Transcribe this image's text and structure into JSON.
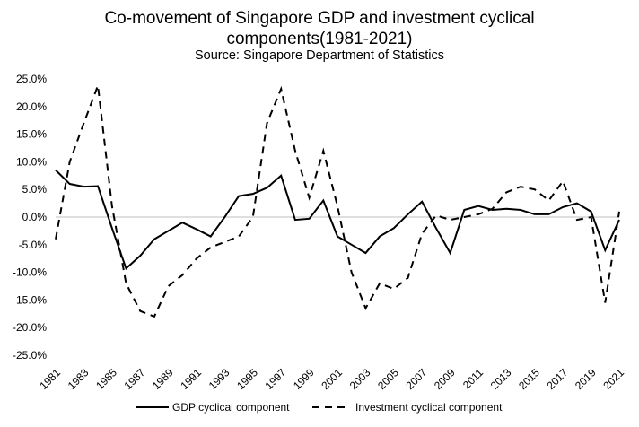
{
  "chart_data": {
    "type": "line",
    "title": "Co-movement of Singapore GDP and investment cyclical",
    "title_line2": "components(1981-2021)",
    "subtitle": "Source: Singapore Department of Statistics",
    "xlabel": "",
    "ylabel": "",
    "ylim": [
      -25,
      25
    ],
    "y_ticks": [
      25,
      20,
      15,
      10,
      5,
      0,
      -5,
      -10,
      -15,
      -20,
      -25
    ],
    "y_tick_labels": [
      "25.0%",
      "20.0%",
      "15.0%",
      "10.0%",
      "5.0%",
      "0.0%",
      "-5.0%",
      "-10.0%",
      "-15.0%",
      "-20.0%",
      "-25.0%"
    ],
    "x": [
      1981,
      1982,
      1983,
      1984,
      1985,
      1986,
      1987,
      1988,
      1989,
      1990,
      1991,
      1992,
      1993,
      1994,
      1995,
      1996,
      1997,
      1998,
      1999,
      2000,
      2001,
      2002,
      2003,
      2004,
      2005,
      2006,
      2007,
      2008,
      2009,
      2010,
      2011,
      2012,
      2013,
      2014,
      2015,
      2016,
      2017,
      2018,
      2019,
      2020,
      2021
    ],
    "x_tick_labels": [
      "1981",
      "1983",
      "1985",
      "1987",
      "1989",
      "1991",
      "1993",
      "1995",
      "1997",
      "1999",
      "2001",
      "2003",
      "2005",
      "2007",
      "2009",
      "2011",
      "2013",
      "2015",
      "2017",
      "2019",
      "2021"
    ],
    "legend_position": "bottom",
    "grid": false,
    "series": [
      {
        "name": "GDP cyclical component",
        "style": "solid",
        "values": [
          8.5,
          6.0,
          5.5,
          5.6,
          -2.0,
          -9.3,
          -7.0,
          -4.0,
          -2.5,
          -1.0,
          -2.2,
          -3.5,
          0.0,
          3.8,
          4.2,
          5.3,
          7.5,
          -0.5,
          -0.3,
          3.0,
          -3.5,
          -5.0,
          -6.5,
          -3.5,
          -2.0,
          0.5,
          2.8,
          -2.0,
          -6.5,
          1.3,
          2.0,
          1.3,
          1.5,
          1.3,
          0.5,
          0.5,
          1.8,
          2.5,
          1.0,
          -6.0,
          -0.5
        ]
      },
      {
        "name": "Investment cyclical component",
        "style": "dashed",
        "values": [
          -4.0,
          10.0,
          17.0,
          23.8,
          2.0,
          -12.0,
          -17.0,
          -18.0,
          -12.5,
          -10.5,
          -7.5,
          -5.5,
          -4.5,
          -3.5,
          0.0,
          17.0,
          23.2,
          12.0,
          3.5,
          12.0,
          2.0,
          -10.0,
          -16.5,
          -12.0,
          -13.0,
          -11.0,
          -3.0,
          0.3,
          -0.5,
          0.0,
          0.5,
          1.5,
          4.5,
          5.5,
          5.0,
          3.0,
          6.5,
          -0.5,
          0.0,
          -15.5,
          1.0
        ]
      }
    ]
  }
}
